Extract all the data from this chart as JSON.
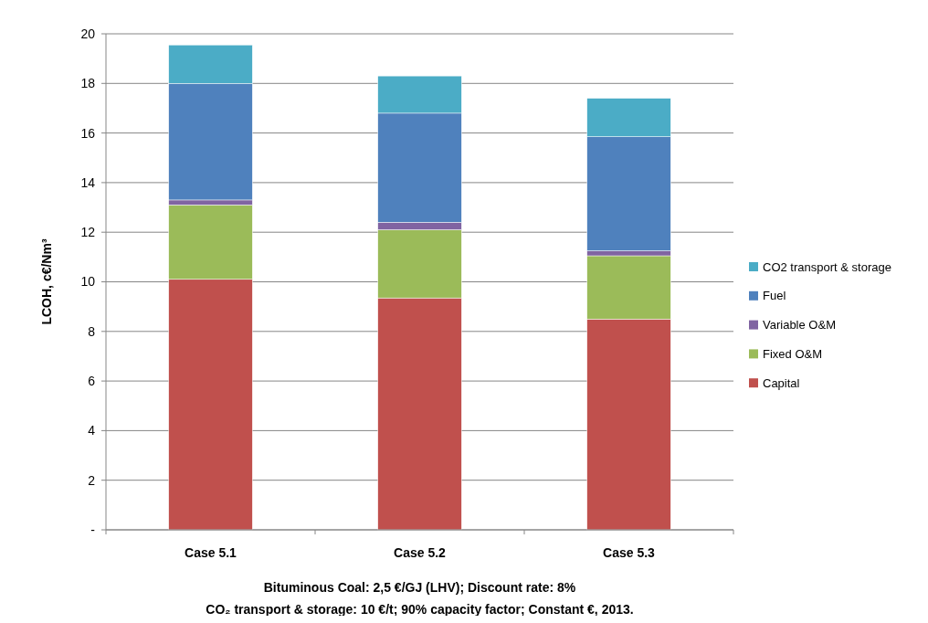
{
  "chart_data": {
    "type": "bar",
    "stacked": true,
    "ylabel": "LCOH, c€/Nm³",
    "categories": [
      "Case 5.1",
      "Case 5.2",
      "Case 5.3"
    ],
    "series": [
      {
        "name": "Capital",
        "color": "#c0504d",
        "values": [
          10.1,
          9.35,
          8.5
        ]
      },
      {
        "name": "Fixed O&M",
        "color": "#9bbb59",
        "values": [
          3.0,
          2.75,
          2.55
        ]
      },
      {
        "name": "Variable O&M",
        "color": "#8064a2",
        "values": [
          0.2,
          0.3,
          0.2
        ]
      },
      {
        "name": "Fuel",
        "color": "#4f81bd",
        "values": [
          4.7,
          4.4,
          4.6
        ]
      },
      {
        "name": "CO2 transport & storage",
        "color": "#4bacc6",
        "values": [
          1.55,
          1.5,
          1.55
        ]
      }
    ],
    "ylim": [
      0,
      20
    ],
    "yticks": [
      {
        "value": 0,
        "label": "-"
      },
      2,
      4,
      6,
      8,
      10,
      12,
      14,
      16,
      18,
      20
    ],
    "grid": "y",
    "legend": "right",
    "annotations": [
      "Bituminous Coal: 2,5 €/GJ (LHV); Discount rate: 8%",
      "CO₂ transport & storage: 10 €/t;  90% capacity  factor; Constant €, 2013."
    ]
  }
}
